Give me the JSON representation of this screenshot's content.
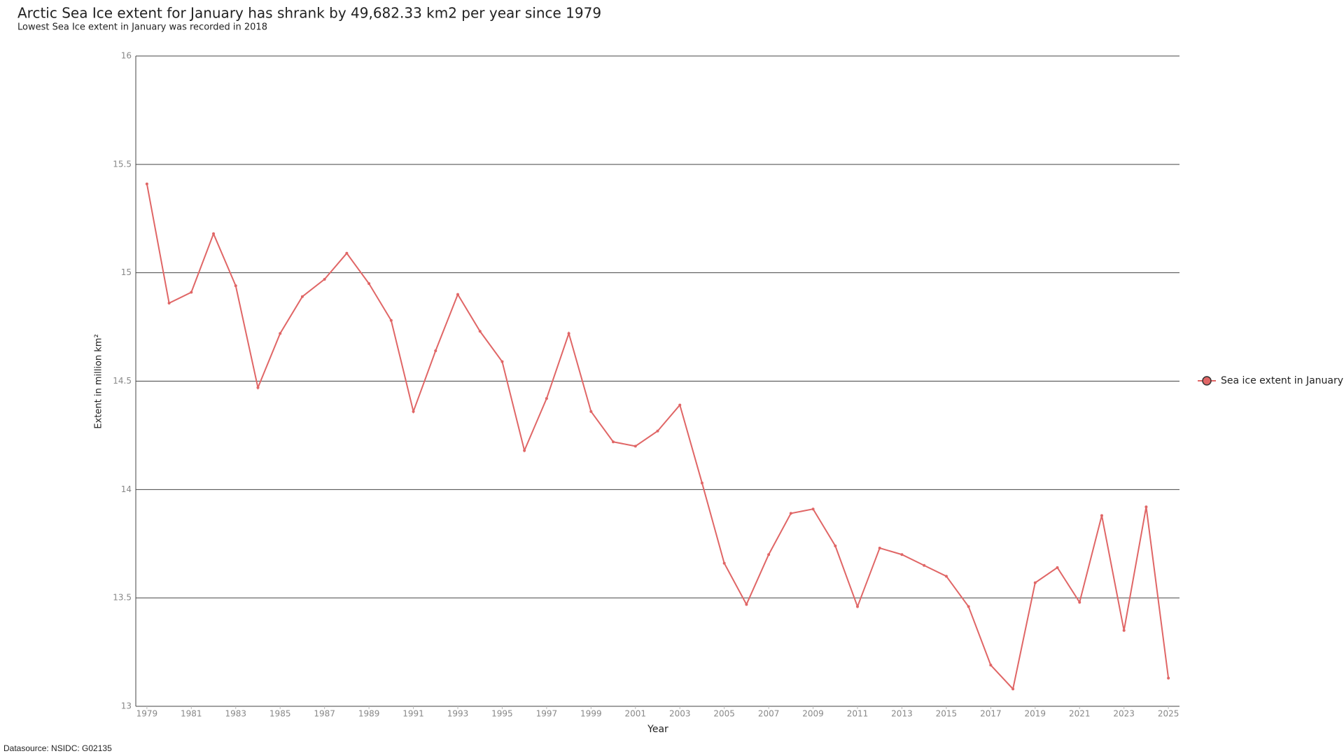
{
  "chart_data": {
    "type": "line",
    "title": "Arctic Sea Ice extent for January has shrank by 49,682.33 km2 per year since 1979",
    "subtitle": "Lowest Sea Ice extent in January was recorded in 2018",
    "x_label": "Year",
    "y_label": "Extent in million km²",
    "source": "Datasource: NSIDC: G02135",
    "x": [
      1979,
      1980,
      1981,
      1982,
      1983,
      1984,
      1985,
      1986,
      1987,
      1988,
      1989,
      1990,
      1991,
      1992,
      1993,
      1994,
      1995,
      1996,
      1997,
      1998,
      1999,
      2000,
      2001,
      2002,
      2003,
      2004,
      2005,
      2006,
      2007,
      2008,
      2009,
      2010,
      2011,
      2012,
      2013,
      2014,
      2015,
      2016,
      2017,
      2018,
      2019,
      2020,
      2021,
      2022,
      2023,
      2024,
      2025
    ],
    "series": [
      {
        "name": "Sea ice extent in January",
        "color": "#e06666",
        "values": [
          15.41,
          14.86,
          14.91,
          15.18,
          14.94,
          14.47,
          14.72,
          14.89,
          14.97,
          15.09,
          14.95,
          14.78,
          14.36,
          14.64,
          14.9,
          14.73,
          14.59,
          14.18,
          14.42,
          14.72,
          14.36,
          14.22,
          14.2,
          14.27,
          14.39,
          14.03,
          13.66,
          13.47,
          13.7,
          13.89,
          13.91,
          13.74,
          13.46,
          13.73,
          13.7,
          13.65,
          13.6,
          13.46,
          13.19,
          13.08,
          13.57,
          13.64,
          13.48,
          13.88,
          13.35,
          13.92,
          13.13
        ]
      }
    ],
    "xlim": [
      1978.5,
      2025.5
    ],
    "xticks": [
      1979,
      1981,
      1983,
      1985,
      1987,
      1989,
      1991,
      1993,
      1995,
      1997,
      1999,
      2001,
      2003,
      2005,
      2007,
      2009,
      2011,
      2013,
      2015,
      2017,
      2019,
      2021,
      2023,
      2025
    ],
    "ylim": [
      13,
      16
    ],
    "yticks": [
      13,
      13.5,
      14,
      14.5,
      15,
      15.5,
      16
    ],
    "grid": true,
    "legend": "right"
  }
}
